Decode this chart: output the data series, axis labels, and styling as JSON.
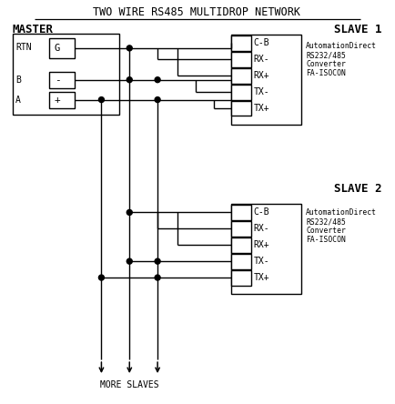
{
  "title": "TWO WIRE RS485 MULTIDROP NETWORK",
  "bg_color": "#ffffff",
  "line_color": "#000000",
  "fig_width": 4.35,
  "fig_height": 4.44,
  "dpi": 100,
  "master_label": "MASTER",
  "slave1_label": "SLAVE 1",
  "slave2_label": "SLAVE 2",
  "slave_ports": [
    "C-B",
    "RX-",
    "RX+",
    "TX-",
    "TX+"
  ],
  "ad_text": [
    "AutomationDirect",
    "RS232/485",
    "Converter",
    "FA-ISOCON"
  ],
  "more_slaves": "MORE SLAVES"
}
